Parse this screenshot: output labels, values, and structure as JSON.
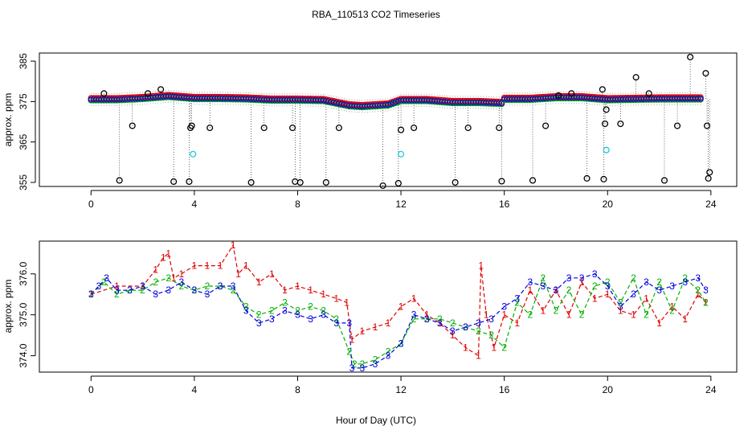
{
  "title": "RBA_110513  CO2 Timeseries",
  "xlabel": "Hour of Day (UTC)",
  "colors": {
    "black": "#000000",
    "red": "#e00000",
    "green": "#00b000",
    "blue": "#0000e0",
    "cyan": "#20c8d0",
    "axis": "#000000"
  },
  "chart_data": [
    {
      "type": "scatter",
      "name": "top-panel",
      "ylabel": "approx. ppm",
      "xlim": [
        -2,
        25
      ],
      "ylim": [
        354,
        387
      ],
      "xticks": [
        0,
        4,
        8,
        12,
        16,
        20,
        24
      ],
      "yticks": [
        355,
        365,
        375,
        385
      ],
      "series": [
        {
          "name": "black",
          "color": "#000000",
          "x": [
            0.5,
            1.1,
            1.6,
            2.2,
            2.7,
            3.2,
            3.8,
            3.85,
            3.9,
            4.6,
            6.2,
            6.7,
            7.8,
            7.9,
            8.1,
            9.1,
            9.6,
            11.3,
            11.9,
            12.0,
            12.5,
            14.1,
            14.6,
            15.8,
            15.9,
            17.1,
            17.6,
            18.1,
            18.6,
            19.2,
            19.8,
            19.85,
            19.9,
            19.95,
            20.5,
            21.1,
            21.6,
            22.2,
            22.7,
            23.2,
            23.8,
            23.85,
            23.9,
            23.95
          ],
          "y": [
            377,
            355.5,
            369,
            377,
            378,
            355.2,
            355.2,
            368.5,
            369,
            368.5,
            355,
            368.5,
            368.5,
            355.2,
            355,
            355,
            368.5,
            354.2,
            354.8,
            368,
            368.5,
            355,
            368.5,
            368.5,
            355.3,
            355.5,
            369,
            376.5,
            377,
            356,
            378,
            355.8,
            369.5,
            373,
            369.5,
            381,
            377,
            355.5,
            369,
            386,
            382,
            369,
            356,
            357.5
          ]
        },
        {
          "name": "cyan",
          "color": "#20c8d0",
          "x": [
            3.95,
            12.0,
            19.95
          ],
          "y": [
            362,
            362,
            363
          ]
        }
      ],
      "bands": [
        {
          "x": [
            0,
            1,
            2,
            3,
            4,
            5,
            6,
            7,
            8,
            9,
            10,
            10.5,
            11,
            11.5,
            12,
            13,
            14,
            15,
            15.9,
            16,
            17,
            18,
            19,
            20,
            21,
            22,
            23,
            23.7
          ],
          "y": [
            375.5,
            375.5,
            375.8,
            376.3,
            375.8,
            375.8,
            375.7,
            375.4,
            375.4,
            375.3,
            374,
            373.8,
            374,
            374.2,
            375.3,
            375.3,
            374.8,
            374.8,
            374.6,
            375.6,
            375.6,
            376,
            376,
            375.5,
            375.6,
            375.7,
            375.7,
            375.7
          ]
        }
      ]
    },
    {
      "type": "line",
      "name": "bottom-panel",
      "ylabel": "approx. ppm",
      "xlim": [
        -2,
        25
      ],
      "ylim": [
        373.6,
        376.8
      ],
      "xticks": [
        0,
        4,
        8,
        12,
        16,
        20,
        24
      ],
      "yticks": [
        374.0,
        375.0,
        376.0
      ],
      "ytick_labels": [
        "374.0",
        "375.0",
        "376.0"
      ],
      "series": [
        {
          "name": "1",
          "color": "#e00000",
          "x": [
            0,
            1,
            2,
            2.5,
            2.8,
            3.0,
            3.2,
            3.5,
            4,
            4.5,
            5,
            5.5,
            5.7,
            6,
            6.5,
            7,
            7.5,
            8,
            8.5,
            9,
            9.5,
            9.9,
            10.1,
            10.5,
            11,
            11.5,
            12,
            12.5,
            13,
            13.5,
            14,
            14.5,
            15,
            15.1,
            15.3,
            15.6,
            16,
            16.5,
            17,
            17.5,
            18,
            18.5,
            19,
            19.5,
            20,
            20.5,
            21,
            21.5,
            22,
            22.5,
            23,
            23.5,
            23.8
          ],
          "y": [
            375.5,
            375.7,
            375.7,
            376.1,
            376.4,
            376.5,
            375.9,
            376.0,
            376.2,
            376.2,
            376.2,
            376.7,
            376.0,
            376.2,
            375.8,
            376.0,
            375.6,
            375.7,
            375.6,
            375.5,
            375.4,
            375.3,
            374.4,
            374.6,
            374.7,
            374.8,
            375.2,
            375.4,
            375.0,
            374.8,
            374.5,
            374.2,
            374.0,
            376.2,
            375.0,
            374.2,
            375.0,
            374.8,
            375.6,
            375.1,
            375.6,
            375.0,
            375.8,
            375.4,
            375.5,
            375.1,
            375.0,
            375.4,
            374.8,
            375.2,
            374.9,
            375.5,
            375.3
          ]
        },
        {
          "name": "2",
          "color": "#00b000",
          "x": [
            0,
            0.5,
            1,
            1.5,
            2,
            2.5,
            3,
            3.5,
            4,
            4.5,
            5,
            5.5,
            6,
            6.5,
            7,
            7.5,
            8,
            8.5,
            9,
            9.5,
            10,
            10.2,
            10.5,
            11,
            11.5,
            12,
            12.5,
            13,
            13.5,
            14,
            14.5,
            15,
            15.5,
            16,
            16.5,
            17,
            17.5,
            18,
            18.5,
            19,
            19.5,
            20,
            20.5,
            21,
            21.5,
            22,
            22.5,
            23,
            23.5,
            23.8
          ],
          "y": [
            375.5,
            375.8,
            375.5,
            375.6,
            375.6,
            375.8,
            375.9,
            375.7,
            375.6,
            375.7,
            375.7,
            375.6,
            375.2,
            375.0,
            375.1,
            375.3,
            375.1,
            375.2,
            375.1,
            374.9,
            374.1,
            373.8,
            373.8,
            373.9,
            374.1,
            374.3,
            374.9,
            374.9,
            374.9,
            374.8,
            374.7,
            374.6,
            374.5,
            374.2,
            375.3,
            375.0,
            375.9,
            375.1,
            375.6,
            375.0,
            375.7,
            375.8,
            375.3,
            375.9,
            375.0,
            375.8,
            375.1,
            375.9,
            375.6,
            375.3
          ]
        },
        {
          "name": "3",
          "color": "#0000e0",
          "x": [
            0,
            0.3,
            0.6,
            1,
            1.5,
            2,
            2.5,
            3,
            3.5,
            4,
            4.5,
            5,
            5.5,
            6,
            6.5,
            7,
            7.5,
            8,
            8.5,
            9,
            9.5,
            10,
            10.1,
            10.5,
            11,
            11.5,
            12,
            12.5,
            13,
            13.5,
            14,
            14.5,
            15,
            15.5,
            16,
            16.5,
            17,
            17.5,
            18,
            18.5,
            19,
            19.5,
            20,
            20.5,
            21,
            21.5,
            22,
            22.5,
            23,
            23.5,
            23.8
          ],
          "y": [
            375.5,
            375.7,
            375.9,
            375.6,
            375.6,
            375.7,
            375.5,
            375.6,
            375.8,
            375.6,
            375.5,
            375.7,
            375.7,
            375.1,
            374.8,
            374.9,
            375.1,
            375.0,
            374.9,
            375.0,
            374.8,
            374.8,
            373.7,
            373.7,
            373.8,
            374.0,
            374.3,
            375.0,
            374.9,
            374.8,
            374.6,
            374.7,
            374.8,
            374.9,
            375.2,
            375.4,
            375.8,
            375.7,
            375.6,
            375.9,
            375.9,
            376.0,
            375.7,
            375.2,
            375.5,
            375.8,
            375.6,
            375.7,
            375.8,
            375.9,
            375.6
          ]
        }
      ]
    }
  ]
}
